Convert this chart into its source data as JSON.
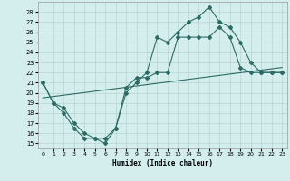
{
  "xlabel": "Humidex (Indice chaleur)",
  "xlim": [
    -0.5,
    23.5
  ],
  "ylim": [
    14.5,
    29.0
  ],
  "yticks": [
    15,
    16,
    17,
    18,
    19,
    20,
    21,
    22,
    23,
    24,
    25,
    26,
    27,
    28
  ],
  "xticks": [
    0,
    1,
    2,
    3,
    4,
    5,
    6,
    7,
    8,
    9,
    10,
    11,
    12,
    13,
    14,
    15,
    16,
    17,
    18,
    19,
    20,
    21,
    22,
    23
  ],
  "bg_color": "#d4eeee",
  "line_color": "#2d6b65",
  "grid_color": "#b8d4d4",
  "line1_x": [
    0,
    1,
    2,
    3,
    4,
    5,
    6,
    7,
    8,
    9,
    10,
    11,
    12,
    13,
    14,
    15,
    16,
    17,
    18,
    19,
    20,
    21,
    22,
    23
  ],
  "line1_y": [
    21,
    19,
    18,
    16.5,
    15.5,
    15.5,
    15,
    16.5,
    20,
    21,
    22,
    25.5,
    25,
    26,
    27,
    27.5,
    28.5,
    27,
    26.5,
    25,
    23,
    22,
    22,
    22
  ],
  "line2_x": [
    0,
    1,
    2,
    3,
    4,
    5,
    6,
    7,
    8,
    9,
    10,
    11,
    12,
    13,
    14,
    15,
    16,
    17,
    18,
    19,
    20,
    21,
    22,
    23
  ],
  "line2_y": [
    21,
    19,
    18.5,
    17,
    16,
    15.5,
    15.5,
    16.5,
    20.5,
    21.5,
    21.5,
    22,
    22,
    25.5,
    25.5,
    25.5,
    25.5,
    26.5,
    25.5,
    22.5,
    22,
    22,
    22,
    22
  ],
  "line3_x": [
    0,
    23
  ],
  "line3_y": [
    19.5,
    22.5
  ]
}
